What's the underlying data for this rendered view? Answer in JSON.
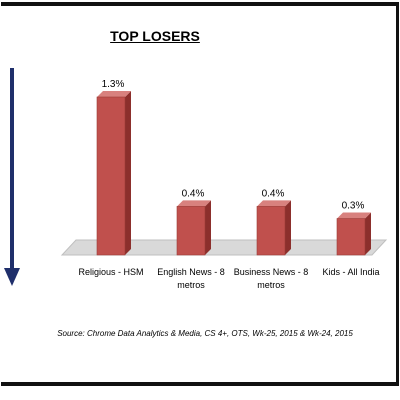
{
  "chart_data": {
    "type": "bar",
    "title": "TOP LOSERS",
    "categories": [
      "Religious - HSM",
      "English News - 8 metros",
      "Business News - 8 metros",
      "Kids - All India"
    ],
    "values": [
      1.3,
      0.4,
      0.4,
      0.3
    ],
    "value_labels": [
      "1.3%",
      "0.4%",
      "0.4%",
      "0.3%"
    ],
    "color": "#c0504d",
    "source": "Source: Chrome Data Analytics & Media, CS 4+,  OTS, Wk-25, 2015 & Wk-24, 2015"
  }
}
